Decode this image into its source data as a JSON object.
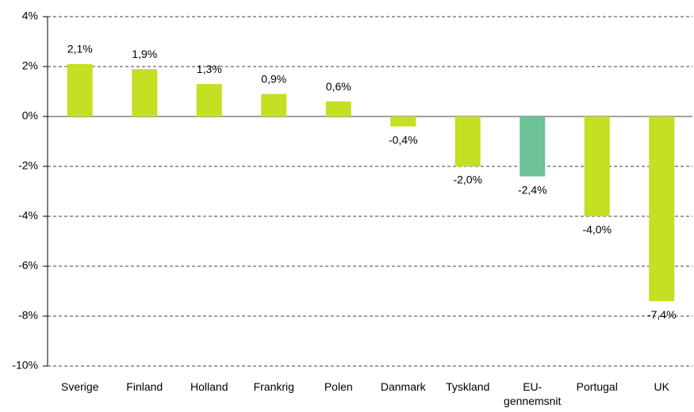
{
  "chart_data": {
    "type": "bar",
    "categories": [
      "Sverige",
      "Finland",
      "Holland",
      "Frankrig",
      "Polen",
      "Danmark",
      "Tyskland",
      "EU-gennemsnit",
      "Portugal",
      "UK"
    ],
    "values": [
      2.1,
      1.9,
      1.3,
      0.9,
      0.6,
      -0.4,
      -2.0,
      -2.4,
      -4.0,
      -7.4
    ],
    "value_labels": [
      "2,1%",
      "1,9%",
      "1,3%",
      "0,9%",
      "0,6%",
      "-0,4%",
      "-2,0%",
      "-2,4%",
      "-4,0%",
      "-7,4%"
    ],
    "colors": [
      "#c5df22",
      "#c5df22",
      "#c5df22",
      "#c5df22",
      "#c5df22",
      "#c5df22",
      "#c5df22",
      "#6cc196",
      "#c5df22",
      "#c5df22"
    ],
    "ylim": [
      -10,
      4
    ],
    "yticks": [
      {
        "value": 4,
        "label": "4%"
      },
      {
        "value": 2,
        "label": "2%"
      },
      {
        "value": 0,
        "label": "0%"
      },
      {
        "value": -2,
        "label": "-2%"
      },
      {
        "value": -4,
        "label": "-4%"
      },
      {
        "value": -6,
        "label": "-6%"
      },
      {
        "value": -8,
        "label": "-8%"
      },
      {
        "value": -10,
        "label": "-10%"
      }
    ],
    "grid": true
  }
}
